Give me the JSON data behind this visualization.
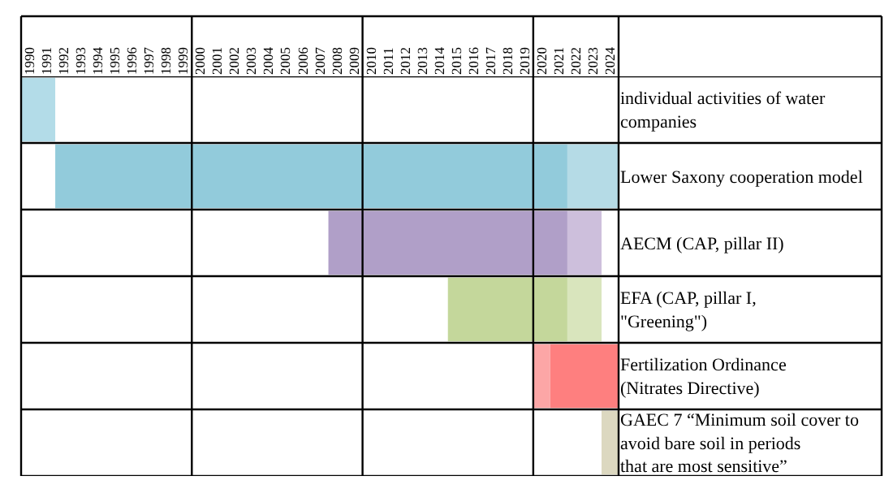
{
  "chart_data": {
    "type": "bar",
    "orientation": "horizontal",
    "categories": [
      "individual activities of water companies",
      "Lower Saxony cooperation model",
      "AECM (CAP, pillar II)",
      "EFA (CAP, pillar I, \"Greening\")",
      "Fertilization Ordinance (Nitrates Directive)",
      "GAEC 7 “Minimum soil cover to avoid bare soil in periods that are most sensitive”"
    ],
    "series": [
      {
        "base": [
          1990,
          1992,
          2008,
          2015,
          2021,
          2024
        ],
        "values": [
          2,
          30,
          14,
          7,
          4,
          1
        ],
        "colors": [
          "#b3dce8",
          "#92cbdb",
          "#b09fc8",
          "#c4d79b",
          "#fe7f7f",
          "#dcd8c0"
        ]
      },
      {
        "base": [
          null,
          2022,
          2022,
          2022,
          2020,
          null
        ],
        "values": [
          null,
          3,
          2,
          2,
          1,
          null
        ],
        "colors": [
          null,
          "#b5dbe6",
          "#cdbfdc",
          "#d9e5bd",
          "#fca6a6",
          null
        ]
      }
    ],
    "xlim": [
      1990,
      2025
    ],
    "xticks": [
      {
        "value": 1990.5,
        "label": "1990"
      },
      {
        "value": 1991.5,
        "label": "1991"
      },
      {
        "value": 1992.5,
        "label": "1992"
      },
      {
        "value": 1993.5,
        "label": "1993"
      },
      {
        "value": 1994.5,
        "label": "1994"
      },
      {
        "value": 1995.5,
        "label": "1995"
      },
      {
        "value": 1996.5,
        "label": "1996"
      },
      {
        "value": 1997.5,
        "label": "1997"
      },
      {
        "value": 1998.5,
        "label": "1998"
      },
      {
        "value": 1999.5,
        "label": "1999"
      },
      {
        "value": 2000.5,
        "label": "2000"
      },
      {
        "value": 2001.5,
        "label": "2001"
      },
      {
        "value": 2002.5,
        "label": "2002"
      },
      {
        "value": 2003.5,
        "label": "2003"
      },
      {
        "value": 2004.5,
        "label": "2004"
      },
      {
        "value": 2005.5,
        "label": "2005"
      },
      {
        "value": 2006.5,
        "label": "2006"
      },
      {
        "value": 2007.5,
        "label": "2007"
      },
      {
        "value": 2008.5,
        "label": "2008"
      },
      {
        "value": 2009.5,
        "label": "2009"
      },
      {
        "value": 2010.5,
        "label": "2010"
      },
      {
        "value": 2011.5,
        "label": "2011"
      },
      {
        "value": 2012.5,
        "label": "2012"
      },
      {
        "value": 2013.5,
        "label": "2013"
      },
      {
        "value": 2014.5,
        "label": "2014"
      },
      {
        "value": 2015.5,
        "label": "2015"
      },
      {
        "value": 2016.5,
        "label": "2016"
      },
      {
        "value": 2017.5,
        "label": "2017"
      },
      {
        "value": 2018.5,
        "label": "2018"
      },
      {
        "value": 2019.5,
        "label": "2019"
      },
      {
        "value": 2020.5,
        "label": "2020"
      },
      {
        "value": 2021.5,
        "label": "2021"
      },
      {
        "value": 2022.5,
        "label": "2022"
      },
      {
        "value": 2023.5,
        "label": "2023"
      },
      {
        "value": 2024.5,
        "label": "2024"
      }
    ],
    "ref_lines": [
      {
        "axis": "x",
        "value": 2000,
        "color": "#000000"
      },
      {
        "axis": "x",
        "value": 2010,
        "color": "#000000"
      },
      {
        "axis": "x",
        "value": 2020,
        "color": "#000000"
      }
    ],
    "grid": "y"
  }
}
